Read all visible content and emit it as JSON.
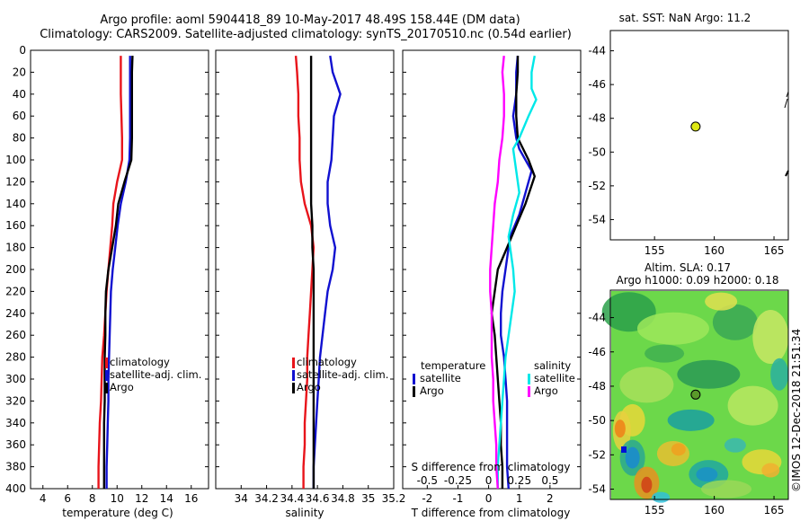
{
  "title": {
    "line1": "Argo profile: aoml 5904418_89 10-May-2017 48.49S 158.44E (DM data)",
    "line2": "Climatology: CARS2009. Satellite-adjusted climatology: synTS_20170510.nc (0.54d earlier)"
  },
  "depth_axis": {
    "range": [
      400,
      0
    ],
    "ticks": [
      0,
      20,
      40,
      60,
      80,
      100,
      120,
      140,
      160,
      180,
      200,
      220,
      240,
      260,
      280,
      300,
      320,
      340,
      360,
      380,
      400
    ]
  },
  "colors": {
    "climatology": "#e8141b",
    "satellite": "#1010d0",
    "argo": "#000000",
    "salinity_satellite": "#00e8e8",
    "salinity_argo": "#ff00ff"
  },
  "chart_data": [
    {
      "type": "line",
      "id": "temperature",
      "xlabel": "temperature (deg C)",
      "xlim": [
        3,
        17.4
      ],
      "xticks": [
        4,
        6,
        8,
        10,
        12,
        14,
        16
      ],
      "legend": [
        {
          "label": "climatology",
          "color": "#e8141b"
        },
        {
          "label": "satellite-adj. clim.",
          "color": "#1010d0"
        },
        {
          "label": "Argo",
          "color": "#000000"
        }
      ],
      "series": [
        {
          "name": "climatology",
          "color": "#e8141b",
          "points": [
            [
              10.3,
              5
            ],
            [
              10.3,
              20
            ],
            [
              10.3,
              40
            ],
            [
              10.35,
              60
            ],
            [
              10.4,
              80
            ],
            [
              10.4,
              100
            ],
            [
              10.0,
              120
            ],
            [
              9.7,
              140
            ],
            [
              9.6,
              160
            ],
            [
              9.45,
              180
            ],
            [
              9.3,
              200
            ],
            [
              9.15,
              220
            ],
            [
              9.05,
              240
            ],
            [
              8.95,
              260
            ],
            [
              8.8,
              280
            ],
            [
              8.75,
              300
            ],
            [
              8.7,
              320
            ],
            [
              8.6,
              340
            ],
            [
              8.55,
              360
            ],
            [
              8.5,
              380
            ],
            [
              8.5,
              400
            ]
          ]
        },
        {
          "name": "satellite-adj. clim.",
          "color": "#1010d0",
          "points": [
            [
              11.05,
              5
            ],
            [
              11.05,
              20
            ],
            [
              11.05,
              40
            ],
            [
              11.05,
              60
            ],
            [
              11.05,
              80
            ],
            [
              11.0,
              100
            ],
            [
              10.7,
              120
            ],
            [
              10.3,
              140
            ],
            [
              10.05,
              160
            ],
            [
              9.85,
              180
            ],
            [
              9.65,
              200
            ],
            [
              9.5,
              220
            ],
            [
              9.45,
              240
            ],
            [
              9.4,
              260
            ],
            [
              9.35,
              280
            ],
            [
              9.3,
              300
            ],
            [
              9.3,
              320
            ],
            [
              9.25,
              340
            ],
            [
              9.2,
              360
            ],
            [
              9.15,
              380
            ],
            [
              9.15,
              400
            ]
          ]
        },
        {
          "name": "Argo",
          "color": "#000000",
          "points": [
            [
              11.25,
              5
            ],
            [
              11.2,
              20
            ],
            [
              11.2,
              40
            ],
            [
              11.2,
              60
            ],
            [
              11.2,
              80
            ],
            [
              11.15,
              100
            ],
            [
              10.6,
              120
            ],
            [
              10.1,
              140
            ],
            [
              9.9,
              160
            ],
            [
              9.6,
              180
            ],
            [
              9.3,
              200
            ],
            [
              9.1,
              220
            ],
            [
              9.05,
              240
            ],
            [
              9.05,
              260
            ],
            [
              9.0,
              280
            ],
            [
              9.0,
              300
            ],
            [
              9.0,
              320
            ],
            [
              8.95,
              340
            ],
            [
              8.95,
              360
            ],
            [
              8.95,
              380
            ],
            [
              8.95,
              400
            ]
          ]
        }
      ]
    },
    {
      "type": "line",
      "id": "salinity",
      "xlabel": "salinity",
      "xlim": [
        33.8,
        35.2
      ],
      "xticks": [
        34,
        34.2,
        34.4,
        34.6,
        34.8,
        35,
        35.2
      ],
      "legend": [
        {
          "label": "climatology",
          "color": "#e8141b"
        },
        {
          "label": "satellite-adj. clim.",
          "color": "#1010d0"
        },
        {
          "label": "Argo",
          "color": "#000000"
        }
      ],
      "series": [
        {
          "name": "climatology",
          "color": "#e8141b",
          "points": [
            [
              34.43,
              5
            ],
            [
              34.44,
              20
            ],
            [
              34.45,
              40
            ],
            [
              34.45,
              60
            ],
            [
              34.46,
              80
            ],
            [
              34.46,
              100
            ],
            [
              34.47,
              120
            ],
            [
              34.5,
              140
            ],
            [
              34.55,
              160
            ],
            [
              34.57,
              180
            ],
            [
              34.56,
              200
            ],
            [
              34.55,
              220
            ],
            [
              34.54,
              240
            ],
            [
              34.53,
              260
            ],
            [
              34.52,
              280
            ],
            [
              34.52,
              300
            ],
            [
              34.51,
              320
            ],
            [
              34.5,
              340
            ],
            [
              34.5,
              360
            ],
            [
              34.49,
              380
            ],
            [
              34.49,
              400
            ]
          ]
        },
        {
          "name": "satellite-adj. clim.",
          "color": "#1010d0",
          "points": [
            [
              34.7,
              5
            ],
            [
              34.72,
              20
            ],
            [
              34.78,
              40
            ],
            [
              34.73,
              60
            ],
            [
              34.72,
              80
            ],
            [
              34.71,
              100
            ],
            [
              34.68,
              120
            ],
            [
              34.68,
              140
            ],
            [
              34.7,
              160
            ],
            [
              34.74,
              180
            ],
            [
              34.72,
              200
            ],
            [
              34.68,
              220
            ],
            [
              34.66,
              240
            ],
            [
              34.64,
              260
            ],
            [
              34.62,
              280
            ],
            [
              34.61,
              300
            ],
            [
              34.6,
              320
            ],
            [
              34.59,
              340
            ],
            [
              34.58,
              360
            ],
            [
              34.57,
              380
            ],
            [
              34.57,
              400
            ]
          ]
        },
        {
          "name": "Argo",
          "color": "#000000",
          "points": [
            [
              34.55,
              5
            ],
            [
              34.55,
              20
            ],
            [
              34.55,
              40
            ],
            [
              34.55,
              60
            ],
            [
              34.55,
              80
            ],
            [
              34.55,
              100
            ],
            [
              34.55,
              120
            ],
            [
              34.55,
              140
            ],
            [
              34.56,
              160
            ],
            [
              34.56,
              180
            ],
            [
              34.57,
              200
            ],
            [
              34.57,
              220
            ],
            [
              34.57,
              240
            ],
            [
              34.57,
              260
            ],
            [
              34.57,
              280
            ],
            [
              34.57,
              300
            ],
            [
              34.57,
              320
            ],
            [
              34.57,
              340
            ],
            [
              34.57,
              360
            ],
            [
              34.57,
              380
            ],
            [
              34.57,
              400
            ]
          ]
        }
      ]
    },
    {
      "type": "line",
      "id": "difference",
      "xlabel": "T difference from climatology",
      "xlim": [
        -2.8,
        3
      ],
      "xticks": [
        -2,
        -1,
        0,
        1,
        2
      ],
      "secondary_axis_label": "S difference from climatology",
      "secondary_ticks": [
        {
          "label": "-0.5",
          "at": -2
        },
        {
          "label": "-0.25",
          "at": -1
        },
        {
          "label": "0",
          "at": 0
        },
        {
          "label": "0.25",
          "at": 1
        },
        {
          "label": "0.5",
          "at": 2
        }
      ],
      "legend_temperature_title": "temperature",
      "legend_temperature": [
        {
          "label": "satellite",
          "color": "#1010d0"
        },
        {
          "label": "Argo",
          "color": "#000000"
        }
      ],
      "legend_salinity_title": "salinity",
      "legend_salinity": [
        {
          "label": "satellite",
          "color": "#00e8e8"
        },
        {
          "label": "Argo",
          "color": "#ff00ff"
        }
      ],
      "series": [
        {
          "name": "T satellite",
          "color": "#1010d0",
          "points": [
            [
              0.95,
              5
            ],
            [
              0.9,
              20
            ],
            [
              0.9,
              40
            ],
            [
              0.8,
              60
            ],
            [
              0.9,
              80
            ],
            [
              1.0,
              90
            ],
            [
              1.4,
              110
            ],
            [
              1.2,
              130
            ],
            [
              1.0,
              150
            ],
            [
              0.7,
              170
            ],
            [
              0.55,
              200
            ],
            [
              0.45,
              220
            ],
            [
              0.4,
              240
            ],
            [
              0.4,
              260
            ],
            [
              0.5,
              280
            ],
            [
              0.55,
              300
            ],
            [
              0.6,
              320
            ],
            [
              0.6,
              340
            ],
            [
              0.6,
              360
            ],
            [
              0.6,
              380
            ],
            [
              0.65,
              400
            ]
          ]
        },
        {
          "name": "T Argo",
          "color": "#000000",
          "points": [
            [
              0.95,
              5
            ],
            [
              0.95,
              20
            ],
            [
              0.9,
              40
            ],
            [
              0.9,
              60
            ],
            [
              0.95,
              80
            ],
            [
              1.3,
              100
            ],
            [
              1.5,
              115
            ],
            [
              1.2,
              140
            ],
            [
              0.9,
              160
            ],
            [
              0.6,
              180
            ],
            [
              0.3,
              200
            ],
            [
              0.2,
              220
            ],
            [
              0.1,
              240
            ],
            [
              0.2,
              260
            ],
            [
              0.25,
              280
            ],
            [
              0.3,
              300
            ],
            [
              0.35,
              320
            ],
            [
              0.4,
              340
            ],
            [
              0.4,
              360
            ],
            [
              0.45,
              380
            ],
            [
              0.45,
              400
            ]
          ]
        },
        {
          "name": "S satellite",
          "color": "#00e8e8",
          "points": [
            [
              1.5,
              5
            ],
            [
              1.4,
              20
            ],
            [
              1.4,
              35
            ],
            [
              1.55,
              45
            ],
            [
              1.3,
              60
            ],
            [
              1.0,
              80
            ],
            [
              0.8,
              90
            ],
            [
              0.9,
              110
            ],
            [
              1.0,
              130
            ],
            [
              0.8,
              150
            ],
            [
              0.65,
              170
            ],
            [
              0.7,
              180
            ],
            [
              0.8,
              200
            ],
            [
              0.85,
              220
            ],
            [
              0.75,
              240
            ],
            [
              0.65,
              260
            ],
            [
              0.55,
              280
            ],
            [
              0.5,
              300
            ],
            [
              0.45,
              320
            ],
            [
              0.4,
              340
            ],
            [
              0.35,
              360
            ],
            [
              0.3,
              380
            ],
            [
              0.3,
              400
            ]
          ]
        },
        {
          "name": "S Argo",
          "color": "#ff00ff",
          "points": [
            [
              0.5,
              5
            ],
            [
              0.45,
              20
            ],
            [
              0.5,
              40
            ],
            [
              0.5,
              60
            ],
            [
              0.45,
              80
            ],
            [
              0.35,
              100
            ],
            [
              0.3,
              120
            ],
            [
              0.2,
              140
            ],
            [
              0.15,
              160
            ],
            [
              0.1,
              180
            ],
            [
              0.05,
              200
            ],
            [
              0.05,
              220
            ],
            [
              0.1,
              240
            ],
            [
              0.1,
              260
            ],
            [
              0.1,
              280
            ],
            [
              0.15,
              300
            ],
            [
              0.15,
              320
            ],
            [
              0.2,
              340
            ],
            [
              0.25,
              360
            ],
            [
              0.25,
              380
            ],
            [
              0.3,
              400
            ]
          ]
        }
      ]
    },
    {
      "type": "scatter",
      "id": "sst-map",
      "title": "sat. SST: NaN Argo: 11.2",
      "xlim": [
        151.3,
        166.2
      ],
      "ylim": [
        -55.2,
        -42.8
      ],
      "xticks": [
        155,
        160,
        165
      ],
      "yticks": [
        -44,
        -46,
        -48,
        -50,
        -52,
        -54
      ],
      "points": [
        {
          "lon": 158.44,
          "lat": -48.49,
          "color": "#dde813"
        }
      ]
    },
    {
      "type": "heatmap",
      "id": "sla-map",
      "title": "Altim. SLA: 0.17",
      "subtitle": "Argo h1000: 0.09 h2000: 0.18",
      "xlim": [
        151.3,
        166.2
      ],
      "ylim": [
        -54.6,
        -42.4
      ],
      "xticks": [
        155,
        160,
        165
      ],
      "yticks": [
        -44,
        -46,
        -48,
        -50,
        -52,
        -54
      ],
      "points": [
        {
          "lon": 158.44,
          "lat": -48.49,
          "color": "#5a9a2a"
        }
      ]
    }
  ],
  "watermark": "©IMOS 12-Dec-2018 21:51:34"
}
